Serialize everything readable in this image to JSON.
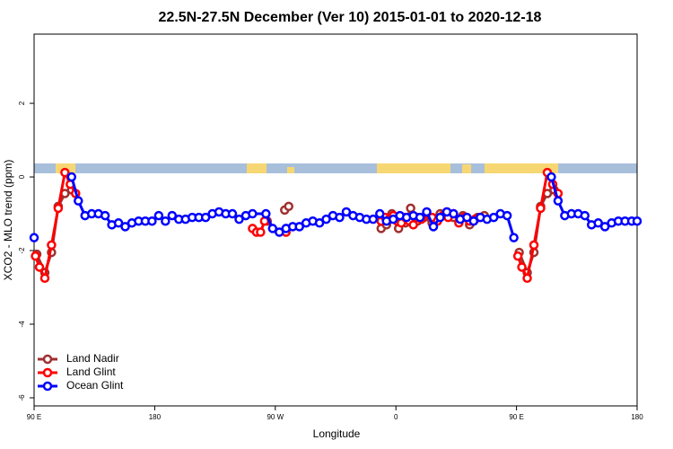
{
  "chart_data": {
    "type": "line",
    "title": "22.5N-27.5N December (Ver 10)   2015-01-01 to 2020-12-18",
    "x_label": "Longitude",
    "y_label": "XCO2 - MLO trend (ppm)",
    "xlim": [
      90,
      540
    ],
    "ylim": [
      -6.22,
      3.88
    ],
    "xticks": [
      {
        "value": 90,
        "label": "90 E"
      },
      180,
      {
        "value": 270,
        "label": "90 W"
      },
      {
        "value": 360,
        "label": "0"
      },
      {
        "value": 450,
        "label": "90 E"
      },
      {
        "value": 540,
        "label": "180"
      }
    ],
    "yticks": [
      -6,
      -4,
      -2,
      0,
      2
    ],
    "legend": "bottom-left",
    "series": [
      {
        "name": "Land Nadir",
        "color": "#a03030",
        "x": [
          92,
          98,
          103,
          108,
          113,
          118,
          null,
          264,
          null,
          277,
          280,
          null,
          349,
          353,
          357,
          362,
          367,
          371,
          376,
          381,
          387,
          393,
          398,
          403,
          410,
          415,
          421,
          426,
          null,
          452,
          458,
          463,
          468,
          473,
          478
        ],
        "values": [
          -2.1,
          -2.6,
          -2.05,
          -0.8,
          -0.45,
          -0.35,
          null,
          -1.2,
          null,
          -0.9,
          -0.8,
          null,
          -1.4,
          -1.3,
          -1.0,
          -1.4,
          -1.25,
          -0.85,
          -1.2,
          -1.1,
          -1.25,
          -1.0,
          -0.95,
          -1.1,
          -1.05,
          -1.3,
          -1.1,
          -1.05,
          null,
          -2.05,
          -2.6,
          -2.05,
          -0.8,
          -0.45,
          -0.35
        ]
      },
      {
        "name": "Land Glint",
        "color": "#ff0000",
        "x": [
          91,
          94,
          98,
          103,
          108,
          113,
          117,
          121,
          null,
          253,
          256,
          259,
          262,
          null,
          278,
          null,
          349,
          352,
          355,
          358,
          361,
          364,
          367,
          370,
          373,
          376,
          379,
          383,
          387,
          391,
          395,
          399,
          403,
          407,
          411,
          415,
          419,
          423,
          null,
          451,
          454,
          458,
          463,
          468,
          473,
          477,
          481
        ],
        "values": [
          -2.15,
          -2.45,
          -2.75,
          -1.85,
          -0.85,
          0.12,
          -0.2,
          -0.45,
          null,
          -1.4,
          -1.5,
          -1.5,
          -1.2,
          null,
          -1.5,
          null,
          -1.2,
          -1.1,
          -1.15,
          -1.05,
          -1.2,
          -1.25,
          -1.1,
          -1.2,
          -1.3,
          -1.1,
          -1.15,
          -1.0,
          -1.1,
          -1.2,
          -1.05,
          -1.1,
          -1.0,
          -1.25,
          -1.1,
          -1.2,
          -1.15,
          -1.1,
          null,
          -2.15,
          -2.45,
          -2.75,
          -1.85,
          -0.85,
          0.12,
          -0.2,
          -0.45
        ]
      },
      {
        "name": "Ocean Glint",
        "color": "#0000ff",
        "x": [
          90,
          null,
          118,
          123,
          128,
          133,
          138,
          143,
          148,
          153,
          158,
          163,
          168,
          173,
          178,
          183,
          188,
          193,
          198,
          203,
          208,
          213,
          218,
          223,
          228,
          233,
          238,
          243,
          248,
          253,
          263,
          268,
          273,
          278,
          283,
          288,
          293,
          298,
          303,
          308,
          313,
          318,
          323,
          328,
          333,
          338,
          343,
          348,
          353,
          358,
          363,
          368,
          373,
          378,
          383,
          388,
          393,
          398,
          403,
          408,
          413,
          418,
          423,
          428,
          433,
          438,
          443,
          448,
          null,
          476,
          481,
          486,
          491,
          496,
          501,
          506,
          511,
          516,
          521,
          526,
          531,
          536,
          540
        ],
        "values": [
          -1.65,
          null,
          0.0,
          -0.65,
          -1.05,
          -1.0,
          -1.0,
          -1.05,
          -1.3,
          -1.25,
          -1.35,
          -1.25,
          -1.2,
          -1.2,
          -1.2,
          -1.05,
          -1.2,
          -1.05,
          -1.15,
          -1.15,
          -1.1,
          -1.1,
          -1.1,
          -1.0,
          -0.95,
          -1.0,
          -1.0,
          -1.15,
          -1.05,
          -1.0,
          -1.0,
          -1.4,
          -1.5,
          -1.4,
          -1.35,
          -1.35,
          -1.25,
          -1.2,
          -1.25,
          -1.15,
          -1.05,
          -1.1,
          -0.95,
          -1.05,
          -1.1,
          -1.15,
          -1.15,
          -1.0,
          -1.2,
          -1.15,
          -1.05,
          -1.1,
          -1.05,
          -1.1,
          -0.95,
          -1.35,
          -1.1,
          -0.95,
          -1.0,
          -1.15,
          -1.1,
          -1.2,
          -1.1,
          -1.15,
          -1.1,
          -1.0,
          -1.05,
          -1.65,
          null,
          0.0,
          -0.65,
          -1.05,
          -1.0,
          -1.0,
          -1.05,
          -1.3,
          -1.25,
          -1.35,
          -1.25,
          -1.2,
          -1.2,
          -1.2,
          -1.2
        ]
      }
    ]
  }
}
